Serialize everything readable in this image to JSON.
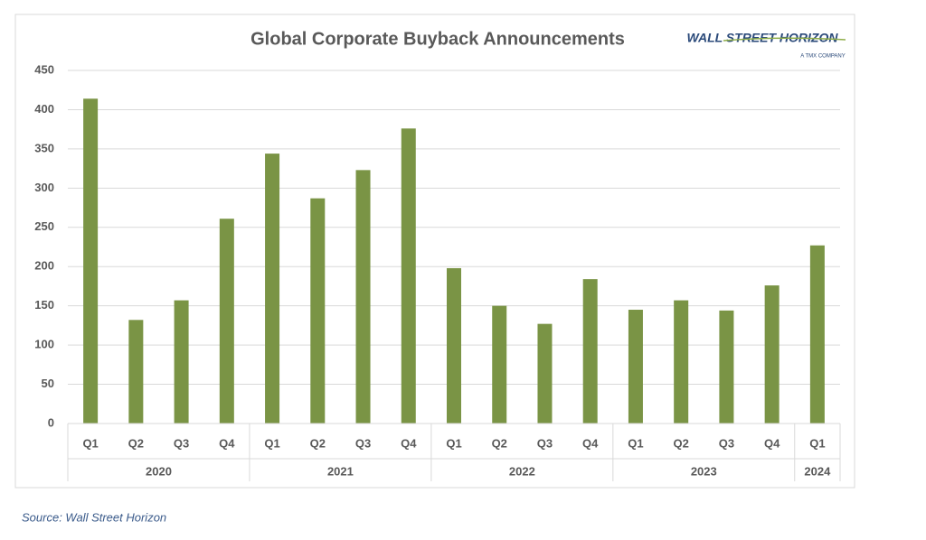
{
  "chart_data": {
    "type": "bar",
    "title": "Global Corporate Buyback Announcements",
    "groups": [
      {
        "name": "2020",
        "categories": [
          "Q1",
          "Q2",
          "Q3",
          "Q4"
        ]
      },
      {
        "name": "2021",
        "categories": [
          "Q1",
          "Q2",
          "Q3",
          "Q4"
        ]
      },
      {
        "name": "2022",
        "categories": [
          "Q1",
          "Q2",
          "Q3",
          "Q4"
        ]
      },
      {
        "name": "2023",
        "categories": [
          "Q1",
          "Q2",
          "Q3",
          "Q4"
        ]
      },
      {
        "name": "2024",
        "categories": [
          "Q1"
        ]
      }
    ],
    "values": [
      414,
      132,
      157,
      261,
      344,
      287,
      323,
      376,
      198,
      150,
      127,
      184,
      145,
      157,
      144,
      176,
      227
    ],
    "color": "#7a9445",
    "ylim": [
      0,
      450
    ],
    "yticks": [
      0,
      50,
      100,
      150,
      200,
      250,
      300,
      350,
      400,
      450
    ],
    "grid": true
  },
  "logo": {
    "name": "WALL STREET HORIZON",
    "tagline": "A TMX COMPANY"
  },
  "source": "Source: Wall Street Horizon"
}
